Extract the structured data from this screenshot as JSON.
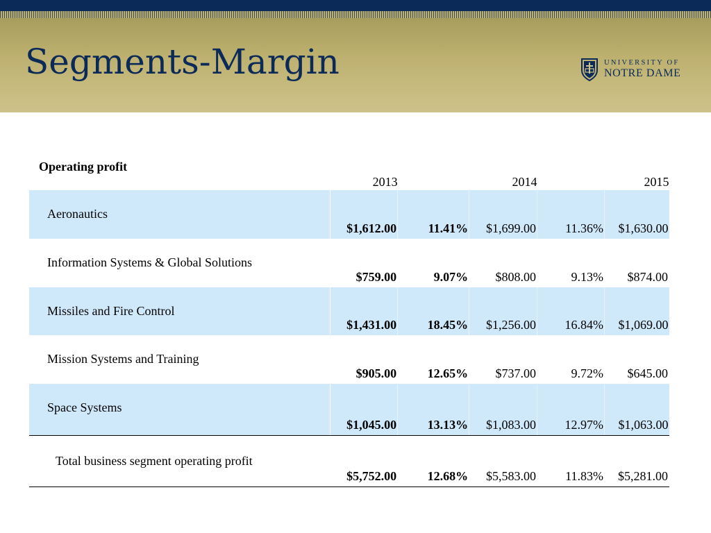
{
  "slide": {
    "title": "Segments-Margin",
    "colors": {
      "navy": "#0c2a58",
      "gold": "#c2b575",
      "row_shade": "#cfe9fb"
    }
  },
  "logo": {
    "line1": "UNIVERSITY OF",
    "line2": "NOTRE DAME",
    "icon": "shield-crest-icon"
  },
  "table": {
    "caption": "Operating profit",
    "years": [
      "2013",
      "2014",
      "2015"
    ],
    "rows": [
      {
        "label": "Aeronautics",
        "v2013": "$1,612.00",
        "m2013": "11.41%",
        "v2014": "$1,699.00",
        "m2014": "11.36%",
        "v2015": "$1,630.00"
      },
      {
        "label": "Information Systems & Global Solutions",
        "v2013": "$759.00",
        "m2013": "9.07%",
        "v2014": "$808.00",
        "m2014": "9.13%",
        "v2015": "$874.00"
      },
      {
        "label": "Missiles and Fire Control",
        "v2013": "$1,431.00",
        "m2013": "18.45%",
        "v2014": "$1,256.00",
        "m2014": "16.84%",
        "v2015": "$1,069.00"
      },
      {
        "label": "Mission Systems and Training",
        "v2013": "$905.00",
        "m2013": "12.65%",
        "v2014": "$737.00",
        "m2014": "9.72%",
        "v2015": "$645.00"
      },
      {
        "label": "Space Systems",
        "v2013": "$1,045.00",
        "m2013": "13.13%",
        "v2014": "$1,083.00",
        "m2014": "12.97%",
        "v2015": "$1,063.00"
      }
    ],
    "total": {
      "label": "Total business segment operating profit",
      "v2013": "$5,752.00",
      "m2013": "12.68%",
      "v2014": "$5,583.00",
      "m2014": "11.83%",
      "v2015": "$5,281.00"
    }
  }
}
